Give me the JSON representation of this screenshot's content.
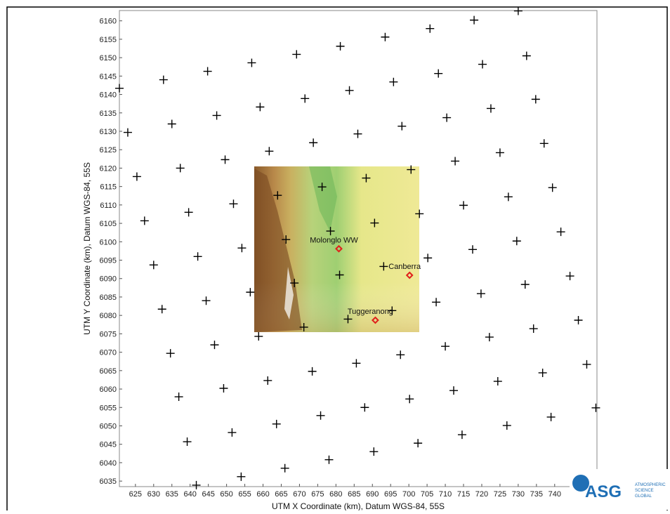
{
  "chart_data": {
    "type": "scatter",
    "xlabel": "UTM X Coordinate (km), Datum WGS-84, 55S",
    "ylabel": "UTM Y Coordinate (km), Datum WGS-84, 55S",
    "xlim": [
      620.6,
      751.6
    ],
    "ylim": [
      6033.5,
      6162.8
    ],
    "xticks": [
      625,
      630,
      635,
      640,
      645,
      650,
      655,
      660,
      665,
      670,
      675,
      680,
      685,
      690,
      695,
      700,
      705,
      710,
      715,
      720,
      725,
      730,
      735,
      740
    ],
    "yticks": [
      6035,
      6040,
      6045,
      6050,
      6055,
      6060,
      6065,
      6070,
      6075,
      6080,
      6085,
      6090,
      6095,
      6100,
      6105,
      6110,
      6115,
      6120,
      6125,
      6130,
      6135,
      6140,
      6145,
      6150,
      6155,
      6160
    ],
    "color": "#000000",
    "x": [
      620.6,
      622.9,
      625.4,
      627.5,
      630.0,
      632.3,
      634.6,
      636.9,
      639.2,
      641.7,
      632.7,
      635.0,
      637.3,
      639.6,
      642.1,
      644.4,
      646.7,
      649.2,
      651.5,
      654.0,
      644.8,
      647.3,
      649.6,
      651.9,
      654.2,
      656.5,
      658.8,
      661.3,
      663.7,
      666.0,
      656.9,
      659.2,
      661.7,
      664.0,
      666.3,
      668.6,
      671.2,
      673.5,
      675.8,
      678.1,
      669.2,
      671.5,
      673.8,
      676.2,
      678.5,
      681.0,
      683.3,
      685.6,
      687.9,
      690.4,
      681.2,
      683.7,
      686.0,
      688.3,
      690.6,
      693.1,
      695.4,
      697.7,
      700.2,
      702.5,
      693.5,
      695.8,
      698.1,
      700.6,
      702.9,
      705.2,
      707.5,
      710.0,
      712.3,
      714.6,
      705.8,
      708.1,
      710.4,
      712.7,
      715.0,
      717.5,
      719.8,
      722.1,
      724.4,
      726.9,
      717.9,
      720.2,
      722.5,
      725.0,
      727.3,
      729.6,
      731.9,
      734.2,
      736.7,
      739.0,
      730.0,
      732.3,
      734.8,
      737.1,
      739.4,
      741.7,
      744.2,
      746.5,
      748.8,
      751.3
    ],
    "y": [
      6141.7,
      6129.7,
      6117.7,
      6105.7,
      6093.7,
      6081.7,
      6069.7,
      6057.9,
      6045.7,
      6033.9,
      6144.0,
      6132.0,
      6120.0,
      6108.0,
      6096.0,
      6084.0,
      6072.0,
      6060.2,
      6048.2,
      6036.2,
      6146.3,
      6134.3,
      6122.3,
      6110.3,
      6098.3,
      6086.3,
      6074.3,
      6062.3,
      6050.5,
      6038.5,
      6148.6,
      6136.6,
      6124.6,
      6112.6,
      6100.6,
      6088.8,
      6076.8,
      6064.8,
      6052.8,
      6040.8,
      6150.9,
      6138.9,
      6126.9,
      6114.9,
      6102.9,
      6091.0,
      6079.0,
      6067.0,
      6055.0,
      6043.0,
      6153.1,
      6141.1,
      6129.3,
      6117.3,
      6105.1,
      6093.3,
      6081.3,
      6069.3,
      6057.3,
      6045.3,
      6155.6,
      6143.4,
      6131.4,
      6119.6,
      6107.6,
      6095.6,
      6083.6,
      6071.6,
      6059.6,
      6047.6,
      6157.9,
      6145.7,
      6133.7,
      6121.9,
      6109.9,
      6097.9,
      6085.9,
      6074.1,
      6062.1,
      6050.1,
      6160.2,
      6148.2,
      6136.2,
      6124.2,
      6112.2,
      6100.2,
      6088.4,
      6076.4,
      6064.4,
      6052.4,
      6162.7,
      6150.5,
      6138.7,
      6126.7,
      6114.7,
      6102.7,
      6090.7,
      6078.7,
      6066.7,
      6054.9
    ],
    "sites": {
      "color": "#e0201b",
      "labels": [
        "Molonglo WW",
        "Canberra",
        "Tuggeranong"
      ],
      "x": [
        680.8,
        700.2,
        690.8
      ],
      "y": [
        6098.1,
        6090.9,
        6078.7
      ]
    },
    "logo": {
      "name": "ASG",
      "lines": [
        "ATMOSPHERIC",
        "SCIENCE",
        "GLOBAL"
      ]
    }
  }
}
